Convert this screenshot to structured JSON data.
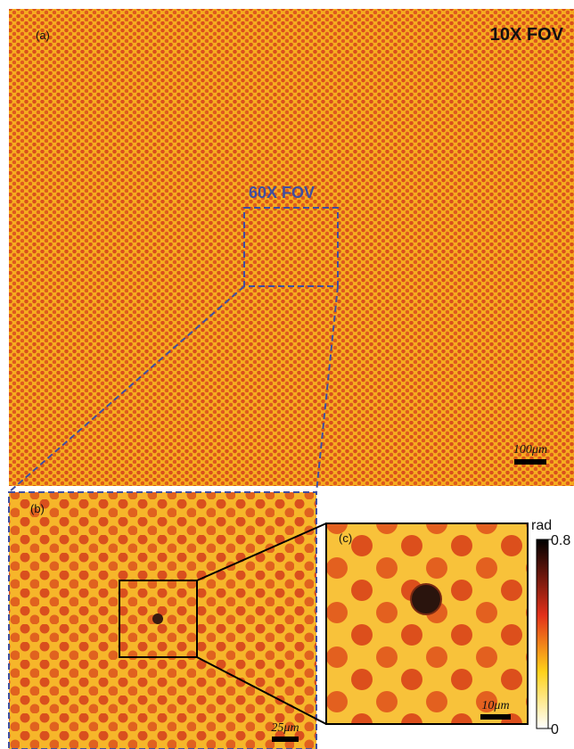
{
  "panel_a": {
    "label": "(a)",
    "title": "10X FOV",
    "inset_title": "60X FOV",
    "scale_bar": "100μm"
  },
  "panel_b": {
    "label": "(b)",
    "scale_bar": "25μm"
  },
  "panel_c": {
    "label": "(c)",
    "scale_bar": "10μm"
  },
  "colorbar": {
    "unit": "rad",
    "lim": [
      0,
      0.8
    ],
    "ticks": [
      0.8,
      0
    ]
  }
}
